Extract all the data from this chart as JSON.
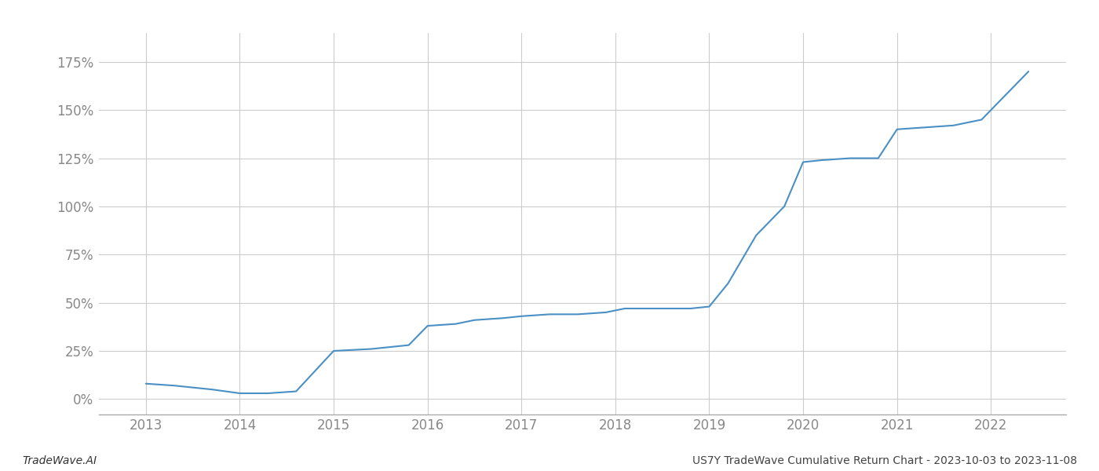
{
  "x_years": [
    2013.0,
    2013.3,
    2013.7,
    2014.0,
    2014.1,
    2014.3,
    2014.6,
    2015.0,
    2015.4,
    2015.8,
    2016.0,
    2016.3,
    2016.5,
    2016.8,
    2017.0,
    2017.3,
    2017.6,
    2017.9,
    2018.0,
    2018.1,
    2018.3,
    2018.5,
    2018.8,
    2019.0,
    2019.2,
    2019.5,
    2019.8,
    2020.0,
    2020.2,
    2020.5,
    2020.8,
    2021.0,
    2021.3,
    2021.6,
    2021.9,
    2022.0,
    2022.2,
    2022.4
  ],
  "y_values": [
    8,
    7,
    5,
    3,
    3,
    3,
    4,
    25,
    26,
    28,
    38,
    39,
    41,
    42,
    43,
    44,
    44,
    45,
    46,
    47,
    47,
    47,
    47,
    48,
    60,
    85,
    100,
    123,
    124,
    125,
    125,
    140,
    141,
    142,
    145,
    150,
    160,
    170
  ],
  "line_color": "#4a90c4",
  "line_width": 1.5,
  "background_color": "#ffffff",
  "grid_color": "#cccccc",
  "tick_color": "#888888",
  "footer_left": "TradeWave.AI",
  "footer_right": "US7Y TradeWave Cumulative Return Chart - 2023-10-03 to 2023-11-08",
  "xlim": [
    2012.5,
    2022.8
  ],
  "ylim": [
    -8,
    190
  ],
  "yticks": [
    0,
    25,
    50,
    75,
    100,
    125,
    150,
    175
  ],
  "xticks": [
    2013,
    2014,
    2015,
    2016,
    2017,
    2018,
    2019,
    2020,
    2021,
    2022
  ],
  "figsize": [
    14.0,
    6.0
  ],
  "dpi": 100
}
